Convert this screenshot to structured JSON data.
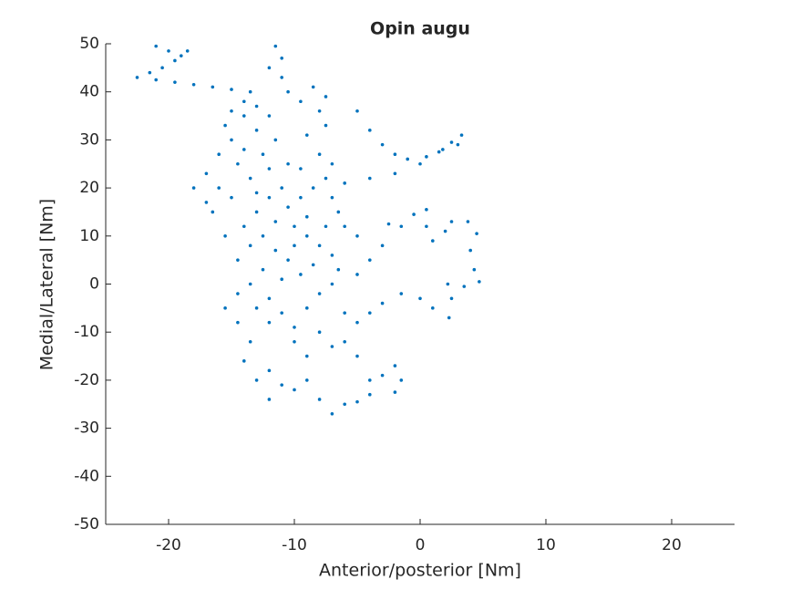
{
  "chart_data": {
    "type": "scatter",
    "title": "Opin augu",
    "x_label": "Anterior/posterior [Nm]",
    "y_label": "Medial/Lateral [Nm]",
    "xlim": [
      -25,
      25
    ],
    "xticks": [
      -20,
      -10,
      0,
      10,
      20
    ],
    "ylim": [
      -50,
      50
    ],
    "yticks": [
      -50,
      -40,
      -30,
      -20,
      -10,
      0,
      10,
      20,
      30,
      40,
      50
    ],
    "grid": false,
    "x": [
      -21,
      -20,
      -19,
      -18.5,
      -19.5,
      -20.5,
      -21.5,
      -22.5,
      -21,
      -19.5,
      -18,
      -16.5,
      -15,
      -13.5,
      -14,
      -15,
      -11.5,
      -11,
      -12,
      -11,
      -10.5,
      -9.5,
      -8.5,
      -7.5,
      -8,
      -7.5,
      -9,
      -5,
      -4,
      -3,
      -2,
      -1,
      0.5,
      1.5,
      2.5,
      3.3,
      3,
      1.8,
      0,
      -2,
      -4,
      -6,
      -2.5,
      -1.5,
      -0.5,
      0.5,
      0.5,
      1,
      2,
      2.5,
      3.8,
      4.5,
      4,
      4.3,
      4.7,
      3.5,
      2.2,
      2.5,
      2.3,
      1,
      0,
      -1.5,
      -3,
      -4,
      -5,
      -12,
      -11,
      -12,
      -10,
      -9,
      -8,
      -7,
      -6,
      -5,
      -4,
      -2,
      -1.5,
      -2,
      -3,
      -4,
      -5,
      -6,
      -13,
      -14,
      -13.5,
      -14.5,
      -15.5,
      -15,
      -14,
      -13,
      -12,
      -14.5,
      -13.5,
      -12.5,
      -11.5,
      -10.5,
      -11,
      -12,
      -13,
      -14,
      -15,
      -16,
      -16.5,
      -15.5,
      -14.5,
      -13.5,
      -12.5,
      -11.5,
      -10.5,
      -9.5,
      -8.5,
      -7.5,
      -7,
      -8,
      -9.5,
      -10,
      -9,
      -8,
      -7,
      -8.5,
      -9.5,
      -10.5,
      -11.5,
      -12.5,
      -13.5,
      -14.5,
      -12,
      -11,
      -10,
      -9,
      -8,
      -7,
      -6.5,
      -7.5,
      -6.5,
      -7,
      -13,
      -14,
      -15.5,
      -16,
      -17,
      -18,
      -17,
      -12,
      -13,
      -10,
      -9,
      -11,
      -12,
      -13,
      -8,
      -7,
      -9,
      -10,
      -6,
      -5,
      -4,
      -3,
      -5,
      -6
    ],
    "series": [
      {
        "color": "#0072bd",
        "values": [
          49.5,
          48.5,
          47.5,
          48.5,
          46.5,
          45,
          44,
          43,
          42.5,
          42,
          41.5,
          41,
          40.5,
          40,
          38,
          36,
          49.5,
          47,
          45,
          43,
          40,
          38,
          41,
          39,
          36,
          33,
          31,
          36,
          32,
          29,
          27,
          26,
          26.5,
          27.5,
          29.5,
          31,
          29,
          28,
          25,
          23,
          22,
          21,
          12.5,
          12,
          14.5,
          15.5,
          12,
          9,
          11,
          13,
          13,
          10.5,
          7,
          3,
          0.5,
          -0.5,
          0,
          -3,
          -7,
          -5,
          -3,
          -2,
          -4,
          -6,
          -8,
          -18,
          -21,
          -24,
          -22,
          -20,
          -24,
          -27,
          -25,
          -24.5,
          -23,
          -22.5,
          -20,
          -17,
          -19,
          -20,
          -15,
          -12,
          -20,
          -16,
          -12,
          -8,
          -5,
          30,
          28,
          32,
          35,
          25,
          22,
          27,
          30,
          25,
          20,
          18,
          15,
          12,
          18,
          20,
          15,
          10,
          5,
          8,
          10,
          13,
          16,
          18,
          20,
          22,
          25,
          27,
          24,
          12,
          10,
          8,
          6,
          4,
          2,
          5,
          7,
          3,
          0,
          -2,
          -3,
          -6,
          -9,
          -5,
          -2,
          0,
          3,
          12,
          15,
          18,
          37,
          35,
          33,
          27,
          23,
          20,
          17,
          24,
          19,
          8,
          14,
          1,
          -8,
          -5,
          -10,
          -13,
          -15,
          -12,
          -6,
          2,
          5,
          8,
          10,
          12
        ]
      }
    ]
  }
}
